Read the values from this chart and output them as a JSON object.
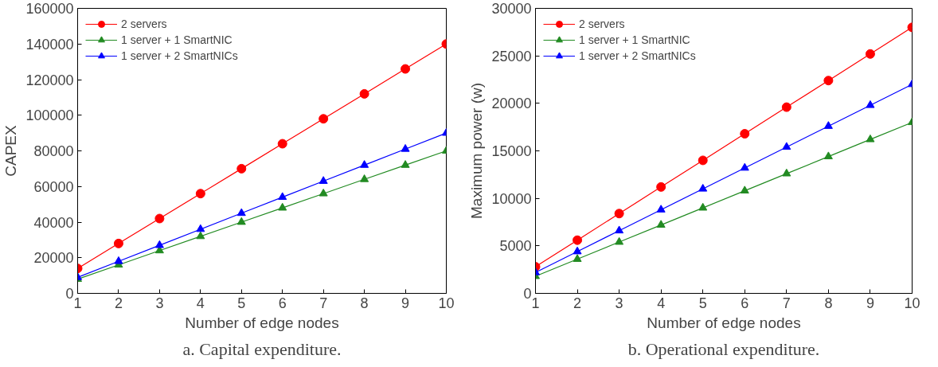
{
  "chart_data": [
    {
      "type": "line",
      "title": "a. Capital expenditure.",
      "xlabel": "Number of edge nodes",
      "ylabel": "CAPEX",
      "x": [
        1,
        2,
        3,
        4,
        5,
        6,
        7,
        8,
        9,
        10
      ],
      "xlim": [
        1,
        10
      ],
      "xticks": [
        1,
        2,
        3,
        4,
        5,
        6,
        7,
        8,
        9,
        10
      ],
      "ylim": [
        0,
        160000
      ],
      "yticks": [
        0,
        20000,
        40000,
        60000,
        80000,
        100000,
        120000,
        140000,
        160000
      ],
      "grid": false,
      "legend": "top left",
      "series": [
        {
          "name": "2 servers",
          "color": "#ff0000",
          "marker": "circle",
          "values": [
            14000,
            28000,
            42000,
            56000,
            70000,
            84000,
            98000,
            112000,
            126000,
            140000
          ]
        },
        {
          "name": "1 server + 1 SmartNIC",
          "color": "#228b22",
          "marker": "triangle",
          "values": [
            8000,
            16000,
            24000,
            32000,
            40000,
            48000,
            56000,
            64000,
            72000,
            80000
          ]
        },
        {
          "name": "1 server + 2 SmartNICs",
          "color": "#0000ff",
          "marker": "triangle",
          "values": [
            9000,
            18000,
            27000,
            36000,
            45000,
            54000,
            63000,
            72000,
            81000,
            90000
          ]
        }
      ]
    },
    {
      "type": "line",
      "title": "b. Operational expenditure.",
      "xlabel": "Number of edge nodes",
      "ylabel": "Maximum power (w)",
      "x": [
        1,
        2,
        3,
        4,
        5,
        6,
        7,
        8,
        9,
        10
      ],
      "xlim": [
        1,
        10
      ],
      "xticks": [
        1,
        2,
        3,
        4,
        5,
        6,
        7,
        8,
        9,
        10
      ],
      "ylim": [
        0,
        30000
      ],
      "yticks": [
        0,
        5000,
        10000,
        15000,
        20000,
        25000,
        30000
      ],
      "grid": false,
      "legend": "top left",
      "series": [
        {
          "name": "2 servers",
          "color": "#ff0000",
          "marker": "circle",
          "values": [
            2800,
            5600,
            8400,
            11200,
            14000,
            16800,
            19600,
            22400,
            25200,
            28000
          ]
        },
        {
          "name": "1 server + 1 SmartNIC",
          "color": "#228b22",
          "marker": "triangle",
          "values": [
            1800,
            3600,
            5400,
            7200,
            9000,
            10800,
            12600,
            14400,
            16200,
            18000
          ]
        },
        {
          "name": "1 server + 2 SmartNICs",
          "color": "#0000ff",
          "marker": "triangle",
          "values": [
            2200,
            4400,
            6600,
            8800,
            11000,
            13200,
            15400,
            17600,
            19800,
            22000
          ]
        }
      ]
    }
  ]
}
